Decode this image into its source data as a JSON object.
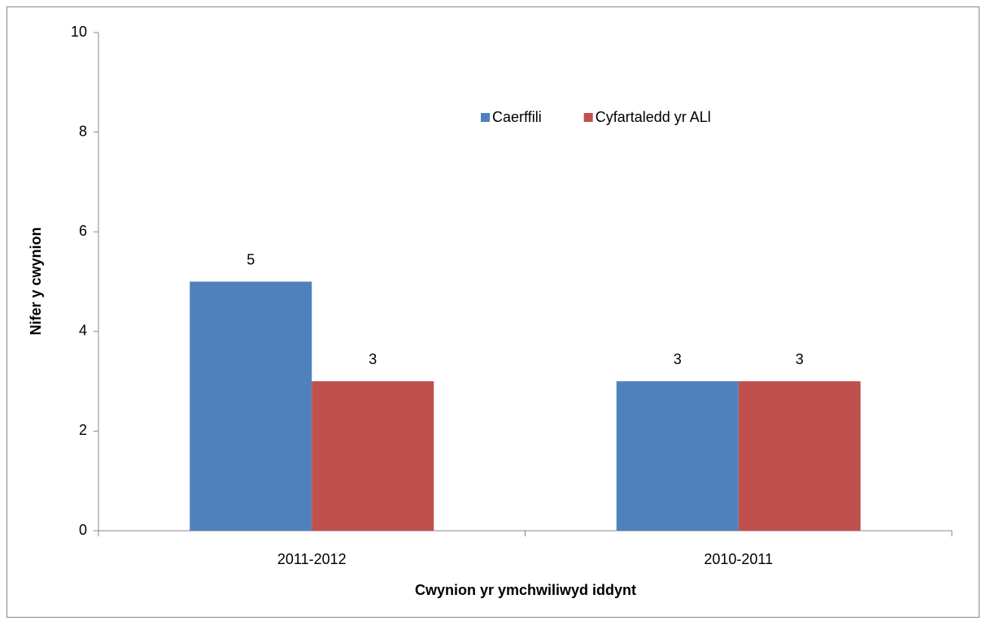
{
  "chart_data": {
    "type": "bar",
    "xlabel": "Cwynion yr ymchwiliwyd iddynt",
    "ylabel": "Nifer y cwynion",
    "categories": [
      "2011-2012",
      "2010-2011"
    ],
    "series": [
      {
        "name": "Caerffili",
        "color": "#4f81bd",
        "values": [
          5,
          3
        ]
      },
      {
        "name": "Cyfartaledd yr ALl",
        "color": "#c0504d",
        "values": [
          3,
          3
        ]
      }
    ],
    "ylim": [
      0,
      10
    ],
    "yticks": [
      0,
      2,
      4,
      6,
      8,
      10
    ],
    "grid": false,
    "legend": "top"
  }
}
